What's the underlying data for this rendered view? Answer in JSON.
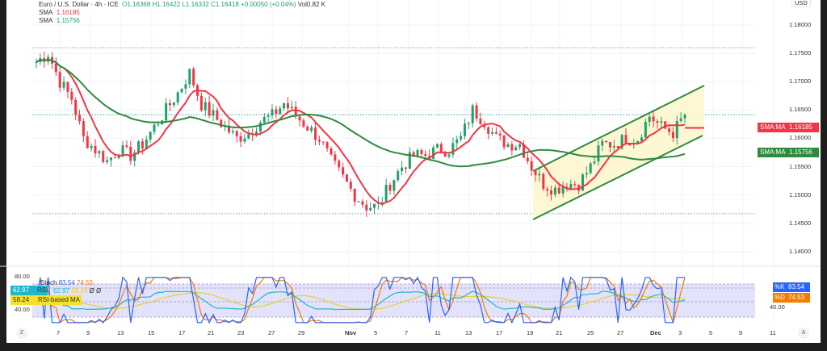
{
  "header": {
    "symbol": "Euro / U.S. Dollar · 4h · ICE",
    "o": "O1.16368",
    "h": "H1.16422",
    "l": "L1.16332",
    "c": "C1.16418",
    "chg": "+0.00050 (+0.04%)",
    "vol": "Vol0.82 K"
  },
  "indicators": [
    {
      "name": "SMA",
      "value": "1.16185",
      "color": "#f23645"
    },
    {
      "name": "SMA",
      "value": "1.15756",
      "color": "#22a06b"
    }
  ],
  "price_axis": {
    "currency": "USD",
    "ticks": [
      "1.18000",
      "1.17500",
      "1.17000",
      "1.16500",
      "1.16000",
      "1.15500",
      "1.15000",
      "1.14500",
      "1.14000"
    ]
  },
  "tags": {
    "sma_fast": {
      "label": "SMA:MA",
      "value": "1.16185"
    },
    "sma_slow": {
      "label": "SMA:MA",
      "value": "1.15756"
    }
  },
  "time_axis": [
    "7",
    "9",
    "13",
    "15",
    "17",
    "21",
    "23",
    "27",
    "29",
    "Nov",
    "5",
    "7",
    "11",
    "13",
    "17",
    "19",
    "21",
    "25",
    "27",
    "Dec",
    "3",
    "5",
    "9",
    "11"
  ],
  "oscillator": {
    "stoch_label": "Stoch",
    "k": "83.54",
    "d": "74.53",
    "rsi_label": "RSI",
    "rsi": "62.97",
    "rsi_ma": "58.24",
    "zero1": "Ø",
    "zero2": "Ø",
    "rsi_ma_label": "RSI-based MA",
    "k_label": "%K",
    "d_label": "%D",
    "axis": [
      "80.00",
      "40.00"
    ]
  },
  "buttons": {
    "left": "Z",
    "right": "A"
  },
  "chart_data": {
    "type": "candlestick",
    "closes": [
      1.1735,
      1.175,
      1.17,
      1.167,
      1.16,
      1.158,
      1.156,
      1.158,
      1.157,
      1.159,
      1.162,
      1.165,
      1.168,
      1.1716,
      1.166,
      1.164,
      1.162,
      1.16,
      1.161,
      1.163,
      1.164,
      1.1662,
      1.164,
      1.162,
      1.16,
      1.156,
      1.153,
      1.15,
      1.148,
      1.148,
      1.152,
      1.155,
      1.157,
      1.157,
      1.158,
      1.158,
      1.16,
      1.165,
      1.163,
      1.16,
      1.159,
      1.159,
      1.155,
      1.152,
      1.151,
      1.152,
      1.152,
      1.155,
      1.159,
      1.159,
      1.16,
      1.16,
      1.164,
      1.162,
      1.161,
      1.1642
    ],
    "ylim": [
      1.138,
      1.182
    ],
    "resistance": 1.176,
    "support": 1.1467,
    "last": 1.16418,
    "up_color": "#22a06b",
    "down_color": "#f23645"
  }
}
